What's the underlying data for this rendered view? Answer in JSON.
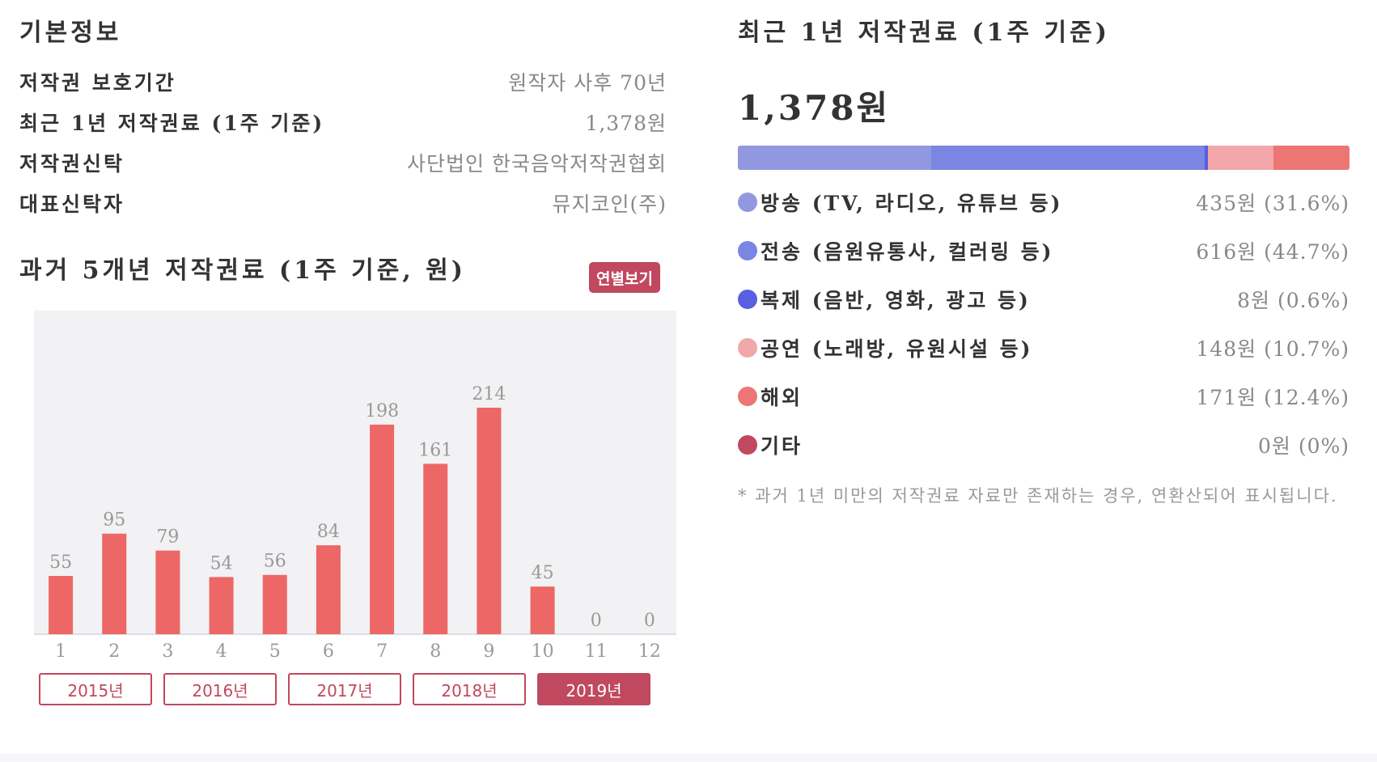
{
  "basic_info": {
    "title": "기본정보",
    "rows": [
      {
        "label": "저작권 보호기간",
        "value": "원작자 사후 70년"
      },
      {
        "label": "최근 1년 저작권료 (1주 기준)",
        "value": "1,378원"
      },
      {
        "label": "저작권신탁",
        "value": "사단법인 한국음악저작권협회"
      },
      {
        "label": "대표신탁자",
        "value": "뮤지코인(주)"
      }
    ]
  },
  "past": {
    "title": "과거 5개년 저작권료 (1주 기준, 원)",
    "yearly_button": "연별보기",
    "year_buttons": [
      "2015년",
      "2016년",
      "2017년",
      "2018년",
      "2019년"
    ],
    "active_year": "2019년"
  },
  "chart_data": {
    "type": "bar",
    "categories": [
      "1",
      "2",
      "3",
      "4",
      "5",
      "6",
      "7",
      "8",
      "9",
      "10",
      "11",
      "12"
    ],
    "values": [
      55,
      95,
      79,
      54,
      56,
      84,
      198,
      161,
      214,
      45,
      0,
      0
    ],
    "bar_color": "#ec6766",
    "background": "#f2f2f4",
    "ylim": [
      0,
      250
    ]
  },
  "recent": {
    "title": "최근 1년 저작권료 (1주 기준)",
    "total": "1,378원",
    "breakdown": [
      {
        "label": "방송 (TV, 라디오, 유튜브 등)",
        "value": "435원 (31.6%)",
        "share": 31.6,
        "color": "#9298e0"
      },
      {
        "label": "전송 (음원유통사, 컬러링 등)",
        "value": "616원 (44.7%)",
        "share": 44.7,
        "color": "#7a86e2"
      },
      {
        "label": "복제 (음반, 영화, 광고 등)",
        "value": "8원 (0.6%)",
        "share": 0.6,
        "color": "#5a5ee0"
      },
      {
        "label": "공연 (노래방, 유원시설 등)",
        "value": "148원 (10.7%)",
        "share": 10.7,
        "color": "#f2a7aa"
      },
      {
        "label": "해외",
        "value": "171원 (12.4%)",
        "share": 12.4,
        "color": "#ec7673"
      },
      {
        "label": "기타",
        "value": "0원 (0%)",
        "share": 0,
        "color": "#c0485f"
      }
    ],
    "footnote": "* 과거 1년 미만의 저작권료 자료만 존재하는 경우, 연환산되어 표시됩니다."
  }
}
